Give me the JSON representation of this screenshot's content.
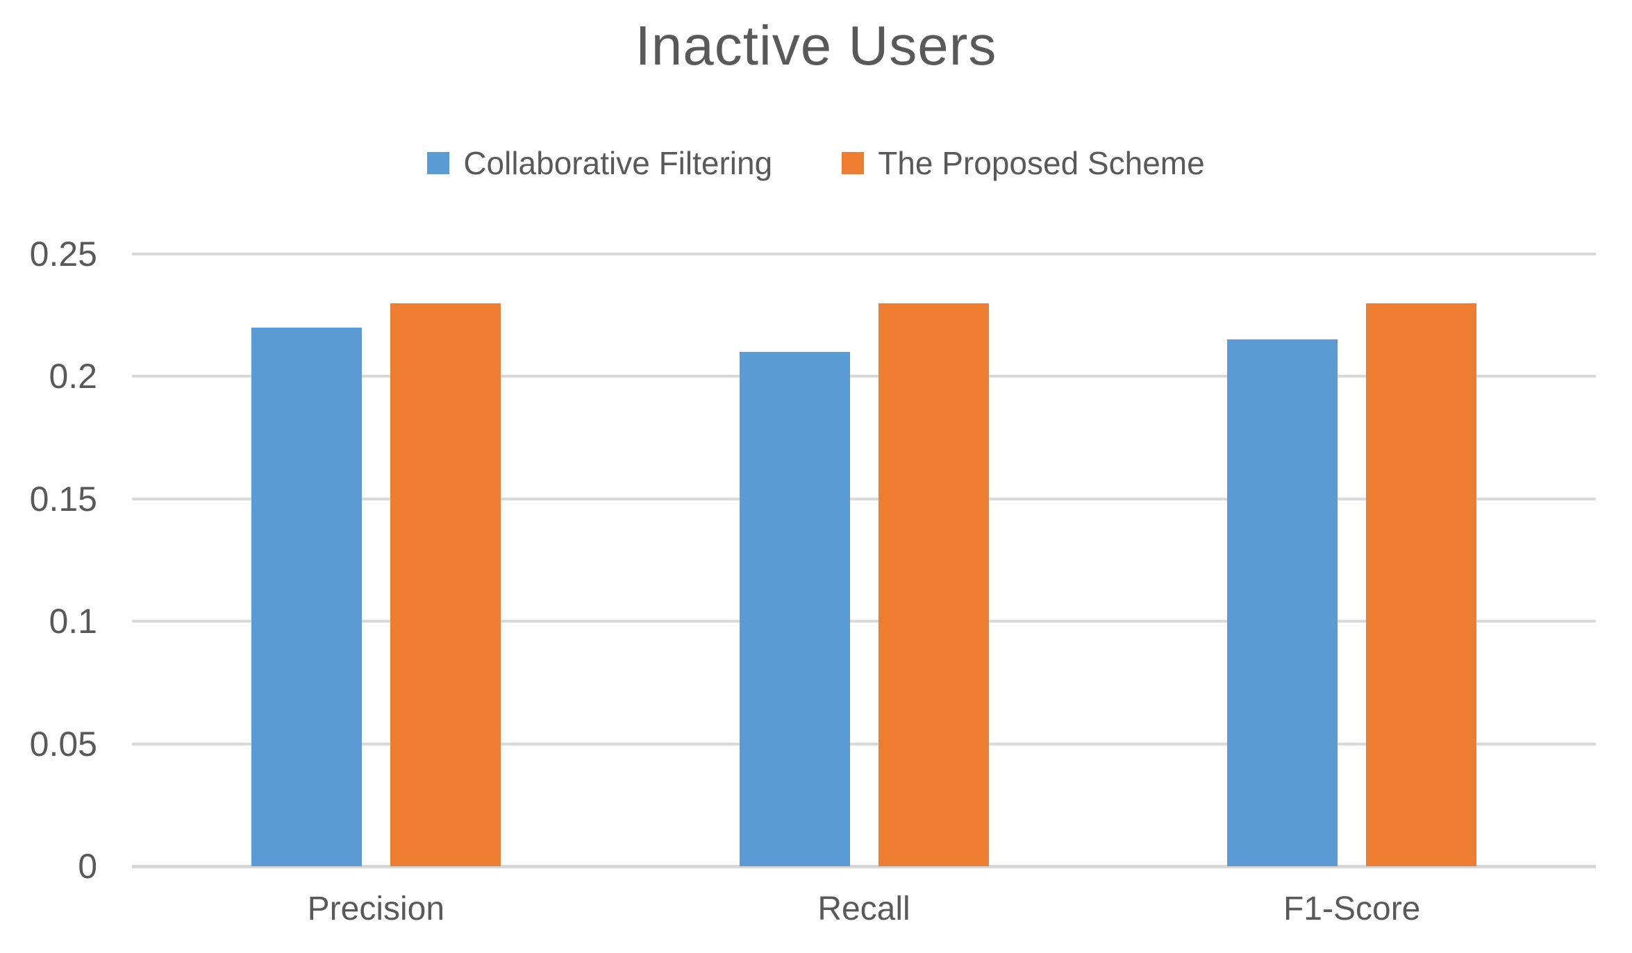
{
  "chart_data": {
    "type": "bar",
    "title": "Inactive Users",
    "categories": [
      "Precision",
      "Recall",
      "F1-Score"
    ],
    "series": [
      {
        "name": "Collaborative Filtering",
        "color": "#5B9BD5",
        "values": [
          0.22,
          0.21,
          0.215
        ]
      },
      {
        "name": "The Proposed Scheme",
        "color": "#ED7D31",
        "values": [
          0.23,
          0.23,
          0.23
        ]
      }
    ],
    "ylim": [
      0,
      0.25
    ],
    "yticks": [
      0,
      0.05,
      0.1,
      0.15,
      0.2,
      0.25
    ],
    "ytick_labels": [
      "0",
      "0.05",
      "0.1",
      "0.15",
      "0.2",
      "0.25"
    ],
    "xlabel": "",
    "ylabel": "",
    "grid": true,
    "legend_position": "top"
  },
  "colors": {
    "text": "#595959",
    "gridline": "#D9D9D9",
    "background": "#FFFFFF",
    "series_blue": "#5B9BD5",
    "series_orange": "#ED7D31"
  }
}
